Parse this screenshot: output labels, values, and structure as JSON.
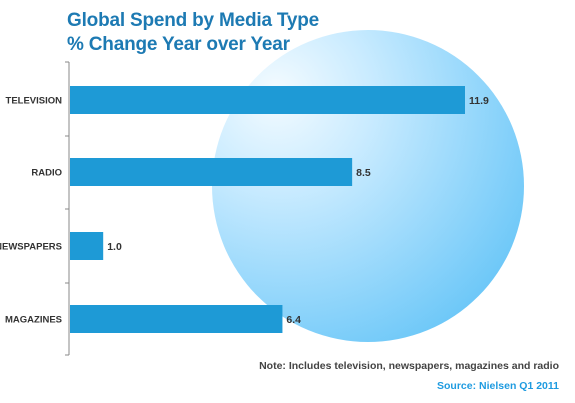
{
  "title_lines": [
    "Global Spend by Media Type",
    "% Change Year over Year"
  ],
  "note": "Note: Includes television, newspapers, magazines and radio",
  "source": "Source: Nielsen Q1 2011",
  "colors": {
    "bar": "#1e9ad6",
    "title": "#1d7ab3",
    "source": "#1e9be0",
    "circle_light": "#e9f6ff",
    "circle_dark": "#71c9f8"
  },
  "chart_data": {
    "type": "bar",
    "orientation": "horizontal",
    "title": "Global Spend by Media Type % Change Year over Year",
    "categories": [
      "TELEVISION",
      "RADIO",
      "NEWSPAPERS",
      "MAGAZINES"
    ],
    "values": [
      11.9,
      8.5,
      1.0,
      6.4
    ],
    "value_labels": [
      "11.9",
      "8.5",
      "1.0",
      "6.4"
    ],
    "xlim": [
      0,
      12.5
    ],
    "grid": false,
    "legend": "none"
  }
}
